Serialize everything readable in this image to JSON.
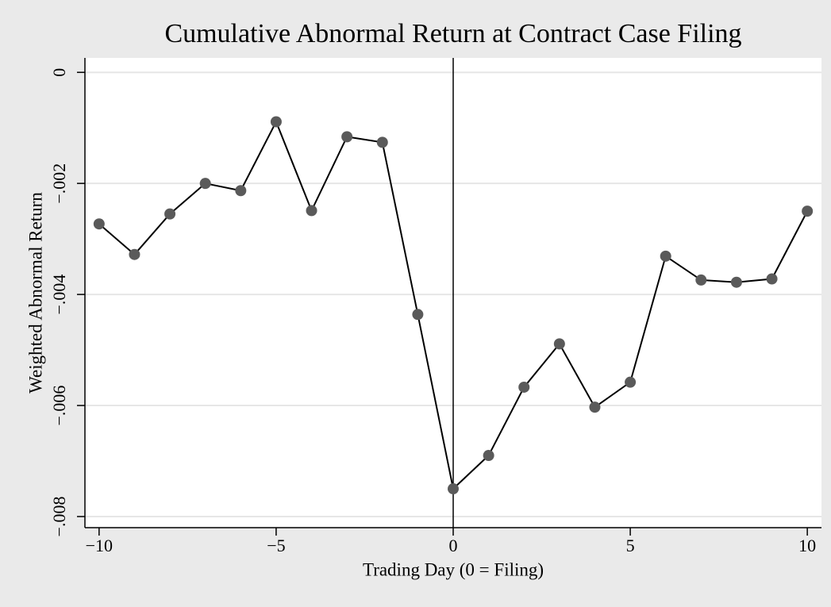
{
  "chart_data": {
    "type": "line",
    "title": "Cumulative Abnormal Return at Contract Case Filing",
    "x_label": "Trading Day (0 = Filing)",
    "y_label": "Weighted Abnormal Return",
    "x": [
      -10,
      -9,
      -8,
      -7,
      -6,
      -5,
      -4,
      -3,
      -2,
      -1,
      0,
      1,
      2,
      3,
      4,
      5,
      6,
      7,
      8,
      9,
      10
    ],
    "series": [
      {
        "name": "Weighted Abnormal Return",
        "color": "#000000",
        "marker_color": "#5a5a5a",
        "values": [
          -0.00273,
          -0.00328,
          -0.00255,
          -0.002,
          -0.00213,
          -0.00089,
          -0.00249,
          -0.00116,
          -0.00126,
          -0.00436,
          -0.0075,
          -0.0069,
          -0.00567,
          -0.00489,
          -0.00603,
          -0.00558,
          -0.00331,
          -0.00374,
          -0.00378,
          -0.00372,
          -0.0025
        ]
      }
    ],
    "xlim": [
      -10.4,
      10.4
    ],
    "ylim": [
      -0.0082,
      0.00026
    ],
    "xticks": [
      {
        "value": -10,
        "label": "−10"
      },
      {
        "value": -5,
        "label": "−5"
      },
      0,
      5,
      10
    ],
    "yticks": [
      0,
      {
        "value": -0.002,
        "label": "−.002"
      },
      {
        "value": -0.004,
        "label": "−.004"
      },
      {
        "value": -0.006,
        "label": "−.006"
      },
      {
        "value": -0.008,
        "label": "−.008"
      }
    ],
    "xline": 0,
    "grid": true
  }
}
